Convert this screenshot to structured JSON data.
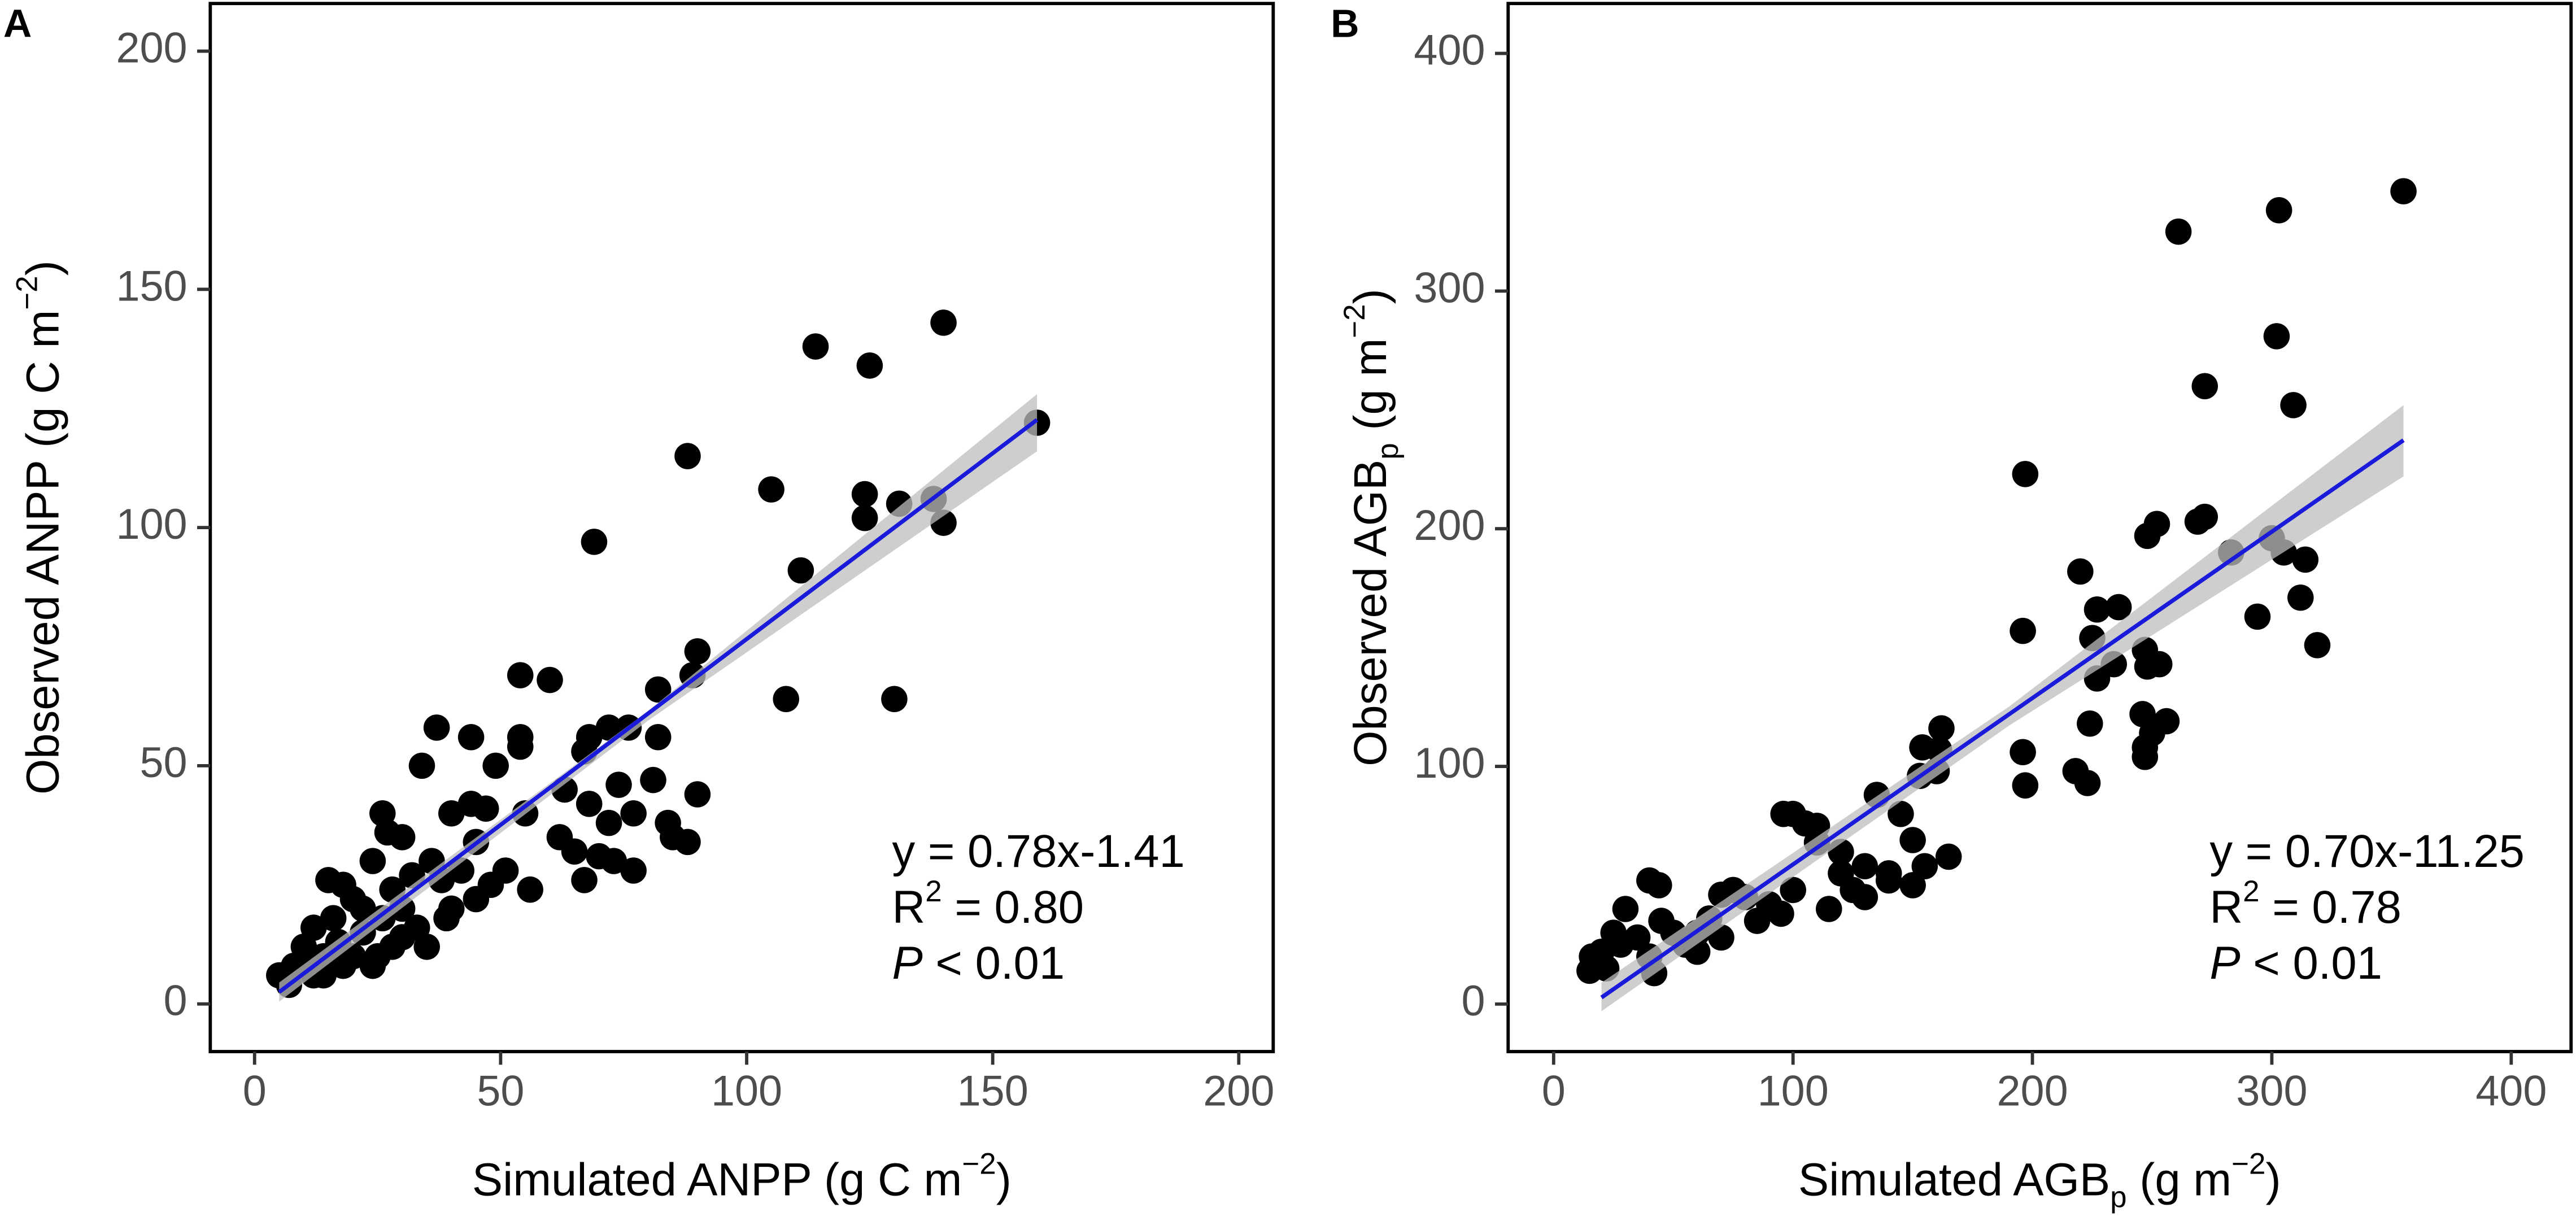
{
  "chart_data": [
    {
      "type": "scatter",
      "panel_label": "A",
      "xlabel": [
        {
          "text": "Simulated ANPP (g C m"
        },
        {
          "text": "−2",
          "sup": true
        },
        {
          "text": ")"
        }
      ],
      "ylabel": [
        {
          "text": "Observed ANPP (g C m"
        },
        {
          "text": "−2",
          "sup": true
        },
        {
          "text": ")"
        }
      ],
      "xlim": [
        -9,
        207
      ],
      "ylim": [
        -10,
        210
      ],
      "xticks": [
        0,
        50,
        100,
        150,
        200
      ],
      "yticks": [
        0,
        50,
        100,
        150,
        200
      ],
      "color": "#000000",
      "fit_color": "#1a1adb",
      "band_color": "#bebebe",
      "x": [
        159,
        140,
        114,
        125,
        88,
        105,
        124,
        131,
        138,
        140,
        124,
        111,
        69,
        130,
        108,
        90,
        89,
        82,
        54,
        60,
        37,
        44,
        54,
        54,
        68,
        72,
        76,
        82,
        67,
        49,
        34,
        63,
        68,
        74,
        81,
        72,
        77,
        84,
        85,
        90,
        88,
        77,
        73,
        70,
        65,
        67,
        56,
        51,
        45,
        44,
        47,
        40,
        48,
        45,
        40,
        39,
        26,
        27,
        30,
        24,
        32,
        33,
        35,
        30,
        22,
        20,
        18,
        15,
        16,
        12,
        10,
        14,
        8,
        5,
        7,
        12,
        18,
        25,
        28,
        22,
        28,
        36,
        38,
        14,
        10,
        17,
        20,
        24,
        26,
        30,
        42,
        55,
        62
      ],
      "y": [
        122,
        143,
        138,
        134,
        115,
        108,
        107,
        105,
        106,
        101,
        102,
        91,
        97,
        64,
        64,
        74,
        69,
        66,
        69,
        68,
        58,
        56,
        54,
        56,
        56,
        58,
        58,
        56,
        53,
        50,
        50,
        45,
        42,
        46,
        47,
        38,
        40,
        38,
        35,
        44,
        34,
        28,
        30,
        31,
        32,
        26,
        24,
        28,
        34,
        42,
        41,
        40,
        25,
        22,
        20,
        18,
        40,
        36,
        35,
        30,
        27,
        16,
        12,
        14,
        15,
        22,
        25,
        26,
        18,
        16,
        12,
        10,
        8,
        6,
        4,
        6,
        8,
        10,
        12,
        20,
        24,
        30,
        26,
        6,
        8,
        13,
        10,
        8,
        18,
        20,
        28,
        40,
        35
      ],
      "fit": {
        "slope": 0.78,
        "intercept": -1.41,
        "x_range": [
          5,
          159
        ]
      },
      "band": {
        "x": [
          5,
          80,
          159
        ],
        "lower": [
          0.5,
          59.5,
          116
        ],
        "upper": [
          4.5,
          61.5,
          128
        ]
      },
      "annotations": [
        [
          {
            "text": "y = 0.78x-1.41"
          }
        ],
        [
          {
            "text": "R"
          },
          {
            "text": "2",
            "sup": true
          },
          {
            "text": " = 0.80"
          }
        ],
        [
          {
            "text": "P",
            "italic": true
          },
          {
            "text": " < 0.01"
          }
        ]
      ]
    },
    {
      "type": "scatter",
      "panel_label": "B",
      "xlabel": [
        {
          "text": "Simulated AGB"
        },
        {
          "text": "p",
          "sub": true
        },
        {
          "text": " (g  m"
        },
        {
          "text": "−2",
          "sup": true
        },
        {
          "text": ")"
        }
      ],
      "ylabel": [
        {
          "text": "Observed AGB"
        },
        {
          "text": "p",
          "sub": true
        },
        {
          "text": " (g  m"
        },
        {
          "text": "−2",
          "sup": true
        },
        {
          "text": ")"
        }
      ],
      "xlim": [
        -19,
        425
      ],
      "ylim": [
        -20,
        421
      ],
      "xticks": [
        0,
        100,
        200,
        300,
        400
      ],
      "yticks": [
        0,
        100,
        200,
        300,
        400
      ],
      "color": "#000000",
      "fit_color": "#1a1adb",
      "band_color": "#bebebe",
      "x": [
        355,
        303,
        261,
        302,
        272,
        309,
        197,
        272,
        269,
        252,
        248,
        300,
        305,
        283,
        314,
        220,
        312,
        236,
        227,
        294,
        196,
        225,
        319,
        234,
        247,
        248,
        253,
        227,
        246,
        256,
        224,
        250,
        247,
        247,
        218,
        223,
        196,
        197,
        162,
        161,
        154,
        153,
        160,
        165,
        150,
        145,
        135,
        130,
        140,
        150,
        155,
        120,
        110,
        100,
        96,
        105,
        110,
        120,
        125,
        100,
        90,
        95,
        80,
        75,
        70,
        65,
        60,
        55,
        45,
        50,
        40,
        44,
        30,
        25,
        20,
        18,
        15,
        16,
        22,
        28,
        35,
        40,
        42,
        60,
        70,
        85,
        115,
        130,
        140
      ],
      "y": [
        342,
        334,
        325,
        281,
        260,
        252,
        223,
        205,
        203,
        202,
        197,
        196,
        190,
        190,
        187,
        182,
        171,
        167,
        166,
        163,
        157,
        154,
        151,
        143,
        149,
        142,
        143,
        137,
        122,
        119,
        118,
        114,
        108,
        104,
        98,
        93,
        106,
        92,
        116,
        107,
        108,
        96,
        98,
        62,
        69,
        80,
        88,
        58,
        55,
        50,
        58,
        64,
        68,
        80,
        80,
        76,
        75,
        55,
        48,
        48,
        42,
        38,
        45,
        48,
        46,
        36,
        30,
        25,
        35,
        30,
        52,
        50,
        40,
        30,
        22,
        18,
        14,
        20,
        15,
        25,
        28,
        20,
        13,
        22,
        28,
        35,
        40,
        45,
        52
      ],
      "fit": {
        "slope": 0.7,
        "intercept": -11.25,
        "x_range": [
          20,
          355
        ]
      },
      "band": {
        "x": [
          20,
          190,
          355
        ],
        "lower": [
          -3,
          117,
          222
        ],
        "upper": [
          9,
          125,
          252
        ]
      },
      "annotations": [
        [
          {
            "text": "y = 0.70x-11.25"
          }
        ],
        [
          {
            "text": "R"
          },
          {
            "text": "2",
            "sup": true
          },
          {
            "text": " = 0.78"
          }
        ],
        [
          {
            "text": "P",
            "italic": true
          },
          {
            "text": " < 0.01"
          }
        ]
      ]
    }
  ]
}
